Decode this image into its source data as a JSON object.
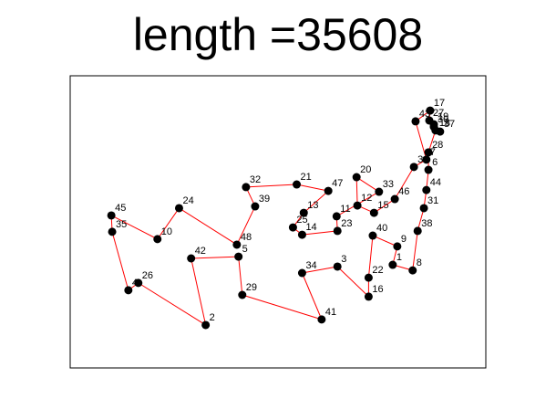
{
  "chart_data": {
    "type": "scatter",
    "title": "length =35608",
    "xlabel": "",
    "ylabel": "",
    "grid": false,
    "axes_visible": false,
    "xlim": [
      0,
      100
    ],
    "ylim": [
      0,
      100
    ],
    "colors": {
      "route": "#ff0000",
      "point": "#000000",
      "frame": "#000000"
    },
    "points": [
      {
        "id": "1",
        "x": 77.6,
        "y": 35.3
      },
      {
        "id": "2",
        "x": 32.6,
        "y": 14.7
      },
      {
        "id": "3",
        "x": 64.3,
        "y": 34.7
      },
      {
        "id": "4",
        "x": 14.0,
        "y": 26.6
      },
      {
        "id": "5",
        "x": 40.5,
        "y": 38.1
      },
      {
        "id": "6",
        "x": 86.2,
        "y": 67.8
      },
      {
        "id": "7",
        "x": 85.7,
        "y": 71.3
      },
      {
        "id": "8",
        "x": 82.4,
        "y": 33.4
      },
      {
        "id": "9",
        "x": 78.7,
        "y": 41.6
      },
      {
        "id": "10",
        "x": 21.0,
        "y": 44.1
      },
      {
        "id": "11",
        "x": 64.1,
        "y": 51.9
      },
      {
        "id": "12",
        "x": 69.1,
        "y": 55.6
      },
      {
        "id": "13",
        "x": 56.2,
        "y": 53.1
      },
      {
        "id": "14",
        "x": 55.8,
        "y": 45.6
      },
      {
        "id": "15",
        "x": 73.1,
        "y": 53.1
      },
      {
        "id": "16",
        "x": 71.8,
        "y": 24.4
      },
      {
        "id": "17",
        "x": 86.6,
        "y": 88.1
      },
      {
        "id": "18",
        "x": 87.9,
        "y": 81.3
      },
      {
        "id": "19",
        "x": 87.5,
        "y": 83.4
      },
      {
        "id": "20",
        "x": 68.9,
        "y": 65.3
      },
      {
        "id": "21",
        "x": 54.5,
        "y": 62.8
      },
      {
        "id": "22",
        "x": 71.8,
        "y": 30.9
      },
      {
        "id": "23",
        "x": 64.3,
        "y": 46.9
      },
      {
        "id": "24",
        "x": 26.2,
        "y": 54.7
      },
      {
        "id": "25",
        "x": 53.6,
        "y": 48.1
      },
      {
        "id": "26",
        "x": 16.4,
        "y": 29.1
      },
      {
        "id": "27",
        "x": 86.4,
        "y": 84.7
      },
      {
        "id": "28",
        "x": 86.2,
        "y": 73.8
      },
      {
        "id": "29",
        "x": 41.4,
        "y": 25.0
      },
      {
        "id": "30",
        "x": 87.5,
        "y": 82.5
      },
      {
        "id": "31",
        "x": 85.1,
        "y": 54.7
      },
      {
        "id": "32",
        "x": 42.3,
        "y": 61.9
      },
      {
        "id": "33",
        "x": 74.3,
        "y": 60.3
      },
      {
        "id": "34",
        "x": 55.8,
        "y": 32.5
      },
      {
        "id": "35",
        "x": 10.1,
        "y": 46.6
      },
      {
        "id": "36",
        "x": 82.7,
        "y": 68.8
      },
      {
        "id": "37",
        "x": 89.0,
        "y": 80.9
      },
      {
        "id": "38",
        "x": 83.6,
        "y": 46.9
      },
      {
        "id": "39",
        "x": 44.5,
        "y": 55.3
      },
      {
        "id": "40",
        "x": 72.8,
        "y": 45.3
      },
      {
        "id": "41",
        "x": 60.5,
        "y": 16.6
      },
      {
        "id": "42",
        "x": 29.1,
        "y": 37.5
      },
      {
        "id": "43",
        "x": 83.1,
        "y": 84.4
      },
      {
        "id": "44",
        "x": 85.7,
        "y": 60.9
      },
      {
        "id": "45",
        "x": 9.9,
        "y": 52.2
      },
      {
        "id": "46",
        "x": 78.1,
        "y": 57.8
      },
      {
        "id": "47",
        "x": 62.1,
        "y": 60.6
      },
      {
        "id": "48",
        "x": 40.1,
        "y": 42.2
      }
    ],
    "route": [
      "45",
      "35",
      "4",
      "26",
      "2",
      "42",
      "5",
      "29",
      "41",
      "34",
      "3",
      "16",
      "22",
      "40",
      "9",
      "1",
      "8",
      "38",
      "31",
      "44",
      "6",
      "28",
      "18",
      "37",
      "19",
      "30",
      "27",
      "17",
      "43",
      "7",
      "36",
      "46",
      "15",
      "12",
      "20",
      "33",
      "11",
      "23",
      "14",
      "25",
      "13",
      "47",
      "21",
      "32",
      "39",
      "48",
      "24",
      "10",
      "45"
    ]
  }
}
